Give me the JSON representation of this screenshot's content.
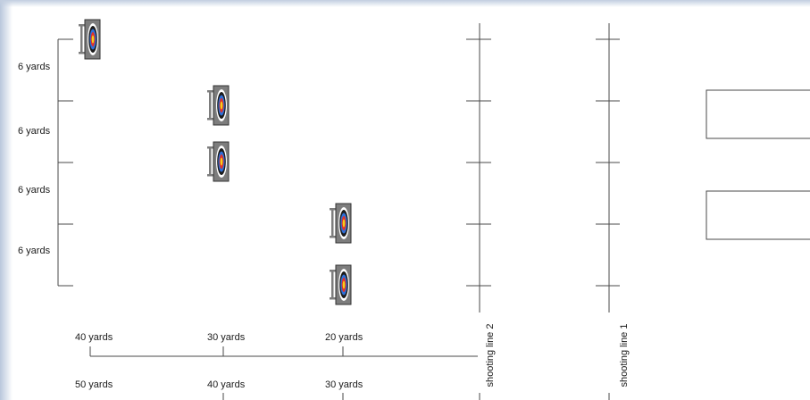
{
  "row_spacing_labels": [
    "6 yards",
    "6 yards",
    "6 yards",
    "6 yards"
  ],
  "distance_rows": [
    {
      "name": "shooting-line-2-distances",
      "labels": [
        "40 yards",
        "30 yards",
        "20 yards"
      ]
    },
    {
      "name": "shooting-line-1-distances",
      "labels": [
        "50 yards",
        "40 yards",
        "30 yards"
      ]
    }
  ],
  "shooting_lines": [
    "shooting line 2",
    "shooting line 1"
  ],
  "target_face_colors": {
    "outer": "#ffffff",
    "black": "#1b1b1b",
    "blue": "#2f6fd8",
    "red": "#e0322b",
    "gold": "#f2d21b",
    "stand": "#7d7d7d"
  },
  "edge_tint": "#b9c7dc"
}
